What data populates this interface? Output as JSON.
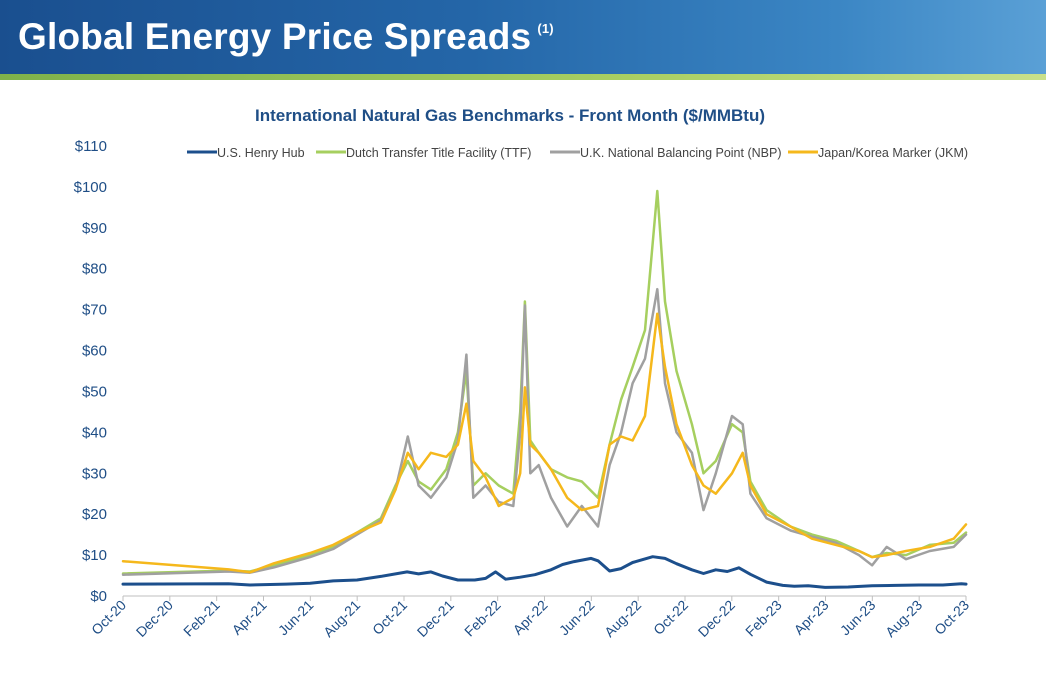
{
  "header": {
    "title": "Global Energy Price Spreads",
    "note": "(1)",
    "colors": {
      "bar_start": "#1a4f8f",
      "bar_end": "#5aa0d6",
      "accent": "#a9cf62"
    }
  },
  "chart_data": {
    "type": "line",
    "title": "International Natural Gas Benchmarks - Front Month ($/MMBtu)",
    "xlabel": "",
    "ylabel": "",
    "ylim": [
      0,
      110
    ],
    "y_ticks": [
      "$0",
      "$10",
      "$20",
      "$30",
      "$40",
      "$50",
      "$60",
      "$70",
      "$80",
      "$90",
      "$100",
      "$110"
    ],
    "x_ticks": [
      "Oct-20",
      "Dec-20",
      "Feb-21",
      "Apr-21",
      "Jun-21",
      "Aug-21",
      "Oct-21",
      "Dec-21",
      "Feb-22",
      "Apr-22",
      "Jun-22",
      "Aug-22",
      "Oct-22",
      "Dec-22",
      "Feb-23",
      "Apr-23",
      "Jun-23",
      "Aug-23",
      "Oct-23"
    ],
    "x_range": [
      "2020-10-01",
      "2023-10-01"
    ],
    "grid": false,
    "legend_position": "top",
    "series": [
      {
        "name": "U.S. Henry Hub",
        "color": "#1c4f8c",
        "points": [
          [
            "2020-10-01",
            2.9
          ],
          [
            "2021-02-15",
            3.0
          ],
          [
            "2021-03-15",
            2.7
          ],
          [
            "2021-05-01",
            2.9
          ],
          [
            "2021-06-01",
            3.1
          ],
          [
            "2021-07-01",
            3.7
          ],
          [
            "2021-08-01",
            3.9
          ],
          [
            "2021-09-01",
            4.8
          ],
          [
            "2021-10-05",
            5.9
          ],
          [
            "2021-10-20",
            5.4
          ],
          [
            "2021-11-05",
            5.9
          ],
          [
            "2021-11-20",
            4.9
          ],
          [
            "2021-12-10",
            3.9
          ],
          [
            "2022-01-01",
            3.9
          ],
          [
            "2022-01-15",
            4.3
          ],
          [
            "2022-01-28",
            5.9
          ],
          [
            "2022-02-10",
            4.1
          ],
          [
            "2022-03-01",
            4.6
          ],
          [
            "2022-03-20",
            5.2
          ],
          [
            "2022-04-10",
            6.4
          ],
          [
            "2022-04-25",
            7.7
          ],
          [
            "2022-05-10",
            8.4
          ],
          [
            "2022-06-01",
            9.2
          ],
          [
            "2022-06-10",
            8.6
          ],
          [
            "2022-06-25",
            6.1
          ],
          [
            "2022-07-10",
            6.7
          ],
          [
            "2022-07-25",
            8.2
          ],
          [
            "2022-08-20",
            9.6
          ],
          [
            "2022-09-05",
            9.2
          ],
          [
            "2022-09-20",
            7.9
          ],
          [
            "2022-10-10",
            6.4
          ],
          [
            "2022-10-25",
            5.5
          ],
          [
            "2022-11-10",
            6.4
          ],
          [
            "2022-11-25",
            6.0
          ],
          [
            "2022-12-10",
            6.9
          ],
          [
            "2022-12-25",
            5.3
          ],
          [
            "2023-01-15",
            3.4
          ],
          [
            "2023-02-05",
            2.6
          ],
          [
            "2023-02-20",
            2.4
          ],
          [
            "2023-03-10",
            2.5
          ],
          [
            "2023-04-01",
            2.1
          ],
          [
            "2023-05-01",
            2.2
          ],
          [
            "2023-06-01",
            2.5
          ],
          [
            "2023-07-01",
            2.6
          ],
          [
            "2023-08-01",
            2.7
          ],
          [
            "2023-09-01",
            2.7
          ],
          [
            "2023-09-25",
            3.0
          ],
          [
            "2023-10-01",
            2.9
          ]
        ]
      },
      {
        "name": "Dutch Transfer Title Facility (TTF)",
        "color": "#a6cf5f",
        "points": [
          [
            "2020-10-01",
            5.5
          ],
          [
            "2021-02-15",
            6.2
          ],
          [
            "2021-03-15",
            6.0
          ],
          [
            "2021-04-15",
            7.5
          ],
          [
            "2021-06-01",
            10.0
          ],
          [
            "2021-07-01",
            12.0
          ],
          [
            "2021-08-01",
            15.5
          ],
          [
            "2021-09-01",
            19.0
          ],
          [
            "2021-09-20",
            27.0
          ],
          [
            "2021-10-06",
            33.0
          ],
          [
            "2021-10-20",
            28.0
          ],
          [
            "2021-11-05",
            26.0
          ],
          [
            "2021-11-25",
            31.0
          ],
          [
            "2021-12-10",
            40.0
          ],
          [
            "2021-12-21",
            55.0
          ],
          [
            "2021-12-30",
            27.0
          ],
          [
            "2022-01-15",
            30.0
          ],
          [
            "2022-02-01",
            27.0
          ],
          [
            "2022-02-20",
            25.0
          ],
          [
            "2022-03-01",
            45.0
          ],
          [
            "2022-03-07",
            72.0
          ],
          [
            "2022-03-14",
            38.0
          ],
          [
            "2022-03-25",
            35.0
          ],
          [
            "2022-04-10",
            31.0
          ],
          [
            "2022-05-01",
            29.0
          ],
          [
            "2022-05-20",
            28.0
          ],
          [
            "2022-06-10",
            24.0
          ],
          [
            "2022-06-25",
            37.0
          ],
          [
            "2022-07-10",
            48.0
          ],
          [
            "2022-07-25",
            56.0
          ],
          [
            "2022-08-10",
            65.0
          ],
          [
            "2022-08-26",
            99.0
          ],
          [
            "2022-09-05",
            72.0
          ],
          [
            "2022-09-20",
            55.0
          ],
          [
            "2022-10-10",
            42.0
          ],
          [
            "2022-10-25",
            30.0
          ],
          [
            "2022-11-10",
            33.0
          ],
          [
            "2022-12-01",
            42.0
          ],
          [
            "2022-12-15",
            40.0
          ],
          [
            "2022-12-25",
            28.0
          ],
          [
            "2023-01-15",
            21.0
          ],
          [
            "2023-02-15",
            17.0
          ],
          [
            "2023-03-15",
            15.0
          ],
          [
            "2023-04-15",
            13.5
          ],
          [
            "2023-05-15",
            11.0
          ],
          [
            "2023-06-01",
            9.5
          ],
          [
            "2023-06-20",
            10.5
          ],
          [
            "2023-07-15",
            10.0
          ],
          [
            "2023-08-15",
            12.5
          ],
          [
            "2023-09-15",
            13.0
          ],
          [
            "2023-10-01",
            15.5
          ]
        ]
      },
      {
        "name": "U.K. National Balancing Point (NBP)",
        "color": "#a0a0a0",
        "points": [
          [
            "2020-10-01",
            5.2
          ],
          [
            "2021-02-15",
            6.0
          ],
          [
            "2021-03-15",
            5.7
          ],
          [
            "2021-04-15",
            7.0
          ],
          [
            "2021-06-01",
            9.5
          ],
          [
            "2021-07-01",
            11.5
          ],
          [
            "2021-08-01",
            15.0
          ],
          [
            "2021-09-01",
            18.5
          ],
          [
            "2021-09-20",
            26.0
          ],
          [
            "2021-10-06",
            39.0
          ],
          [
            "2021-10-20",
            27.0
          ],
          [
            "2021-11-05",
            24.0
          ],
          [
            "2021-11-25",
            29.0
          ],
          [
            "2021-12-10",
            38.0
          ],
          [
            "2021-12-21",
            59.0
          ],
          [
            "2021-12-30",
            24.0
          ],
          [
            "2022-01-15",
            27.0
          ],
          [
            "2022-02-01",
            23.0
          ],
          [
            "2022-02-20",
            22.0
          ],
          [
            "2022-03-01",
            40.0
          ],
          [
            "2022-03-07",
            71.0
          ],
          [
            "2022-03-14",
            30.0
          ],
          [
            "2022-03-25",
            32.0
          ],
          [
            "2022-04-10",
            24.0
          ],
          [
            "2022-05-01",
            17.0
          ],
          [
            "2022-05-20",
            22.0
          ],
          [
            "2022-06-10",
            17.0
          ],
          [
            "2022-06-25",
            32.0
          ],
          [
            "2022-07-10",
            40.0
          ],
          [
            "2022-07-25",
            52.0
          ],
          [
            "2022-08-10",
            58.0
          ],
          [
            "2022-08-26",
            75.0
          ],
          [
            "2022-09-05",
            52.0
          ],
          [
            "2022-09-20",
            40.0
          ],
          [
            "2022-10-10",
            35.0
          ],
          [
            "2022-10-25",
            21.0
          ],
          [
            "2022-11-10",
            30.0
          ],
          [
            "2022-12-01",
            44.0
          ],
          [
            "2022-12-15",
            42.0
          ],
          [
            "2022-12-25",
            25.0
          ],
          [
            "2023-01-15",
            19.0
          ],
          [
            "2023-02-15",
            16.0
          ],
          [
            "2023-03-15",
            14.5
          ],
          [
            "2023-04-15",
            13.0
          ],
          [
            "2023-05-15",
            10.0
          ],
          [
            "2023-06-01",
            7.5
          ],
          [
            "2023-06-20",
            12.0
          ],
          [
            "2023-07-15",
            9.0
          ],
          [
            "2023-08-15",
            11.0
          ],
          [
            "2023-09-15",
            12.0
          ],
          [
            "2023-10-01",
            15.0
          ]
        ]
      },
      {
        "name": "Japan/Korea Marker (JKM)",
        "color": "#f5b81c",
        "points": [
          [
            "2020-10-01",
            8.5
          ],
          [
            "2021-02-15",
            6.5
          ],
          [
            "2021-03-15",
            5.8
          ],
          [
            "2021-04-15",
            8.0
          ],
          [
            "2021-06-01",
            10.5
          ],
          [
            "2021-07-01",
            12.5
          ],
          [
            "2021-08-01",
            15.5
          ],
          [
            "2021-09-01",
            18.0
          ],
          [
            "2021-09-20",
            26.0
          ],
          [
            "2021-10-06",
            35.0
          ],
          [
            "2021-10-20",
            31.0
          ],
          [
            "2021-11-05",
            35.0
          ],
          [
            "2021-11-25",
            34.0
          ],
          [
            "2021-12-10",
            37.0
          ],
          [
            "2021-12-21",
            47.0
          ],
          [
            "2021-12-30",
            33.0
          ],
          [
            "2022-01-15",
            29.0
          ],
          [
            "2022-02-01",
            22.0
          ],
          [
            "2022-02-20",
            24.0
          ],
          [
            "2022-03-01",
            30.0
          ],
          [
            "2022-03-07",
            51.0
          ],
          [
            "2022-03-14",
            37.0
          ],
          [
            "2022-03-25",
            35.0
          ],
          [
            "2022-04-10",
            31.0
          ],
          [
            "2022-05-01",
            24.0
          ],
          [
            "2022-05-20",
            21.0
          ],
          [
            "2022-06-10",
            22.0
          ],
          [
            "2022-06-25",
            37.0
          ],
          [
            "2022-07-10",
            39.0
          ],
          [
            "2022-07-25",
            38.0
          ],
          [
            "2022-08-10",
            44.0
          ],
          [
            "2022-08-26",
            69.0
          ],
          [
            "2022-09-05",
            56.0
          ],
          [
            "2022-09-20",
            42.0
          ],
          [
            "2022-10-10",
            32.0
          ],
          [
            "2022-10-25",
            27.0
          ],
          [
            "2022-11-10",
            25.0
          ],
          [
            "2022-12-01",
            30.0
          ],
          [
            "2022-12-15",
            35.0
          ],
          [
            "2022-12-25",
            27.0
          ],
          [
            "2023-01-15",
            20.0
          ],
          [
            "2023-02-15",
            17.0
          ],
          [
            "2023-03-15",
            14.0
          ],
          [
            "2023-04-15",
            12.5
          ],
          [
            "2023-05-15",
            11.0
          ],
          [
            "2023-06-01",
            9.5
          ],
          [
            "2023-06-20",
            10.0
          ],
          [
            "2023-07-15",
            11.0
          ],
          [
            "2023-08-15",
            12.0
          ],
          [
            "2023-09-15",
            14.0
          ],
          [
            "2023-10-01",
            17.5
          ]
        ]
      }
    ]
  }
}
